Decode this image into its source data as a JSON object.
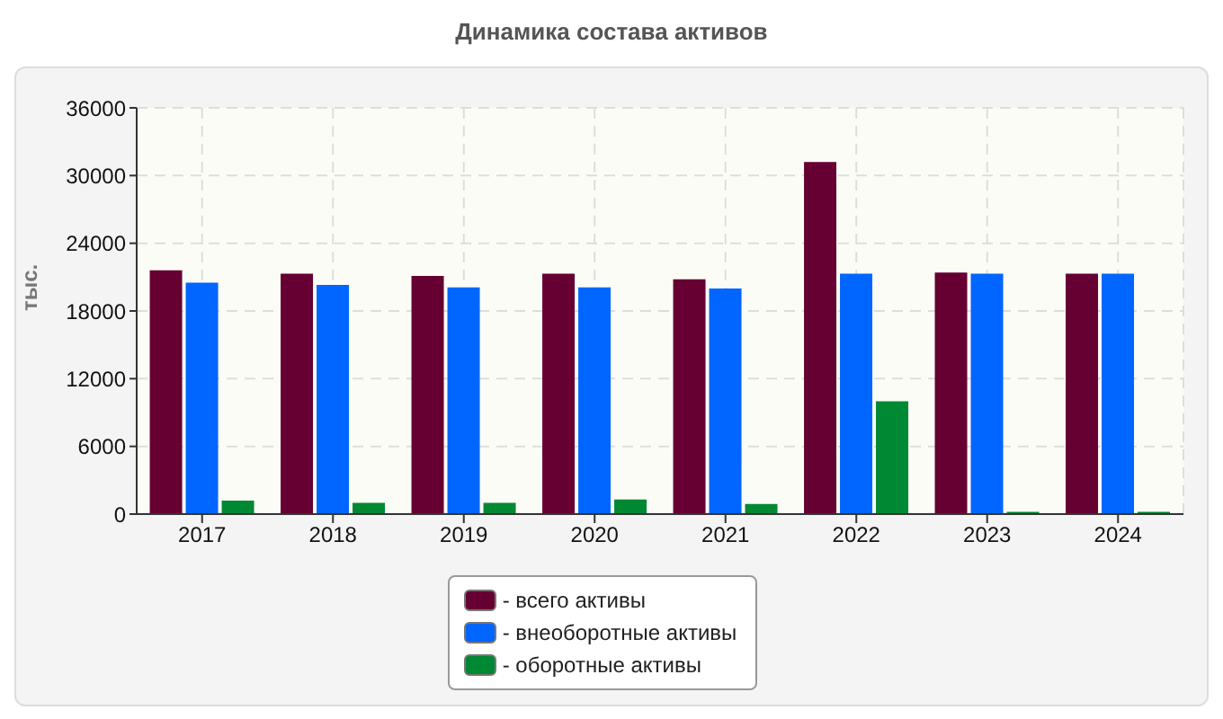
{
  "chart_data": {
    "type": "bar",
    "title": "Динамика состава активов",
    "ylabel": "тыс.",
    "categories": [
      "2017",
      "2018",
      "2019",
      "2020",
      "2021",
      "2022",
      "2023",
      "2024"
    ],
    "series": [
      {
        "name": "- всего активы",
        "color": "#660033",
        "values": [
          21600,
          21300,
          21100,
          21300,
          20800,
          31200,
          21400,
          21300
        ]
      },
      {
        "name": "- внеоборотные активы",
        "color": "#0066ff",
        "values": [
          20500,
          20300,
          20100,
          20100,
          20000,
          21300,
          21300,
          21300
        ]
      },
      {
        "name": "- оборотные активы",
        "color": "#008833",
        "values": [
          1200,
          1000,
          1000,
          1300,
          900,
          10000,
          200,
          200
        ]
      }
    ],
    "ylim": [
      0,
      36000
    ],
    "yticks": [
      0,
      6000,
      12000,
      18000,
      24000,
      30000,
      36000
    ],
    "grid": true,
    "legend": "bottom"
  }
}
